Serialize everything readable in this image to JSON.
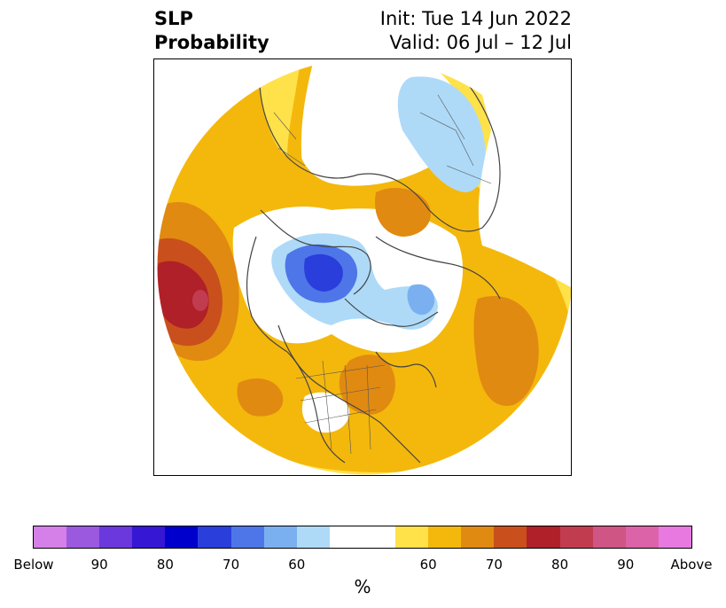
{
  "title": {
    "left_line1": "SLP",
    "left_line2": "Probability",
    "init": "Init: Tue 14 Jun 2022",
    "valid": "Valid: 06 Jul – 12 Jul"
  },
  "colorbar": {
    "unit": "%",
    "ticks": [
      "Below",
      "90",
      "80",
      "70",
      "60",
      "60",
      "70",
      "80",
      "90",
      "Above"
    ],
    "colors": [
      "#d57fe8",
      "#9b59e0",
      "#6a38dc",
      "#3617d4",
      "#0000cc",
      "#2a3edc",
      "#4e76e8",
      "#7ab0f0",
      "#aedaf8",
      "#ffffff",
      "#ffe14a",
      "#f4b80c",
      "#e08a12",
      "#c9501c",
      "#b02028",
      "#c23c50",
      "#cf5584",
      "#dc63a8",
      "#e879e0"
    ]
  },
  "map": {
    "colors": {
      "land_line": "#444444",
      "background": "#ffffff"
    }
  }
}
